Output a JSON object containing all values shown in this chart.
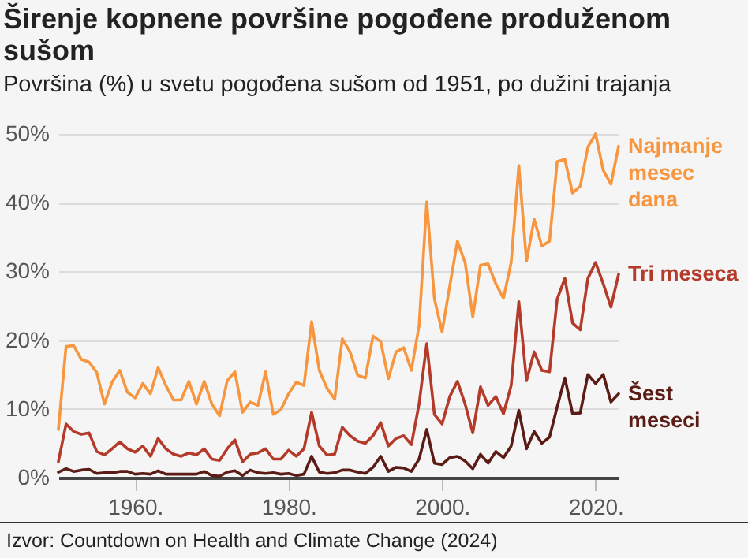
{
  "chart_data": {
    "type": "line",
    "title": "Širenje kopnene površine pogođene produženom sušom",
    "subtitle": "Površina (%) u svetu pogođena sušom od 1951, po dužini trajanja",
    "x": [
      1950,
      1951,
      1952,
      1953,
      1954,
      1955,
      1956,
      1957,
      1958,
      1959,
      1960,
      1961,
      1962,
      1963,
      1964,
      1965,
      1966,
      1967,
      1968,
      1969,
      1970,
      1971,
      1972,
      1973,
      1974,
      1975,
      1976,
      1977,
      1978,
      1979,
      1980,
      1981,
      1982,
      1983,
      1984,
      1985,
      1986,
      1987,
      1988,
      1989,
      1990,
      1991,
      1992,
      1993,
      1994,
      1995,
      1996,
      1997,
      1998,
      1999,
      2000,
      2001,
      2002,
      2003,
      2004,
      2005,
      2006,
      2007,
      2008,
      2009,
      2010,
      2011,
      2012,
      2013,
      2014,
      2015,
      2016,
      2017,
      2018,
      2019,
      2020,
      2021,
      2022,
      2023
    ],
    "series": [
      {
        "name": "Najmanje mesec dana",
        "color": "#f7963e",
        "values": [
          7.0,
          19.1,
          19.2,
          17.2,
          16.8,
          15.3,
          10.7,
          13.9,
          15.6,
          12.4,
          11.6,
          13.7,
          12.2,
          16.0,
          13.4,
          11.3,
          11.3,
          14.0,
          10.7,
          14.0,
          10.7,
          9.0,
          14.1,
          15.4,
          9.5,
          11.0,
          10.5,
          15.4,
          9.2,
          9.9,
          12.2,
          13.9,
          13.4,
          22.7,
          15.6,
          13.0,
          11.4,
          20.2,
          18.3,
          14.9,
          14.5,
          20.6,
          19.8,
          14.4,
          18.3,
          18.9,
          15.6,
          22.1,
          40.1,
          26.0,
          21.2,
          27.9,
          34.4,
          31.3,
          23.4,
          30.9,
          31.1,
          28.2,
          26.1,
          31.3,
          45.4,
          31.5,
          37.6,
          33.7,
          34.4,
          46.0,
          46.3,
          41.4,
          42.4,
          48.1,
          50.0,
          44.7,
          42.7,
          48.2
        ]
      },
      {
        "name": "Tri meseca",
        "color": "#b43a2a",
        "values": [
          2.3,
          7.8,
          6.7,
          6.3,
          6.5,
          3.8,
          3.3,
          4.2,
          5.2,
          4.2,
          3.7,
          4.6,
          3.1,
          5.7,
          4.2,
          3.4,
          3.1,
          3.6,
          3.3,
          4.2,
          2.7,
          2.5,
          4.2,
          5.5,
          2.3,
          3.4,
          3.6,
          4.2,
          2.7,
          2.7,
          4.0,
          3.1,
          4.2,
          9.5,
          4.6,
          3.3,
          3.4,
          7.3,
          6.1,
          5.3,
          5.0,
          6.1,
          8.0,
          4.6,
          5.7,
          6.1,
          4.8,
          10.7,
          19.5,
          9.2,
          7.8,
          11.8,
          14.0,
          10.7,
          6.5,
          13.2,
          10.5,
          11.8,
          9.3,
          13.4,
          25.6,
          14.1,
          18.3,
          15.6,
          15.4,
          26.0,
          29.0,
          22.5,
          21.5,
          29.0,
          31.3,
          28.2,
          24.8,
          29.6
        ]
      },
      {
        "name": "Šest meseci",
        "color": "#5b1c16",
        "values": [
          0.8,
          1.3,
          0.9,
          1.1,
          1.2,
          0.6,
          0.7,
          0.7,
          0.9,
          0.9,
          0.5,
          0.6,
          0.5,
          1.0,
          0.5,
          0.5,
          0.5,
          0.5,
          0.5,
          0.9,
          0.3,
          0.2,
          0.8,
          1.0,
          0.3,
          1.1,
          0.7,
          0.6,
          0.7,
          0.5,
          0.6,
          0.3,
          0.5,
          3.1,
          0.8,
          0.6,
          0.7,
          1.1,
          1.1,
          0.8,
          0.6,
          1.5,
          3.1,
          0.9,
          1.5,
          1.4,
          0.9,
          2.7,
          7.0,
          2.1,
          1.9,
          2.9,
          3.1,
          2.4,
          1.3,
          3.4,
          2.1,
          3.8,
          2.9,
          4.6,
          9.8,
          4.2,
          6.7,
          5.0,
          5.9,
          10.3,
          14.5,
          9.3,
          9.4,
          15.0,
          13.7,
          15.0,
          11.0,
          12.2
        ]
      }
    ],
    "xlim": [
      1950,
      2023
    ],
    "xticks": [
      {
        "value": 1960,
        "label": "1960."
      },
      {
        "value": 1980,
        "label": "1980."
      },
      {
        "value": 2000,
        "label": "2000."
      },
      {
        "value": 2020,
        "label": "2020."
      }
    ],
    "ylim": [
      0,
      50
    ],
    "yticks": [
      {
        "value": 0,
        "label": "0%"
      },
      {
        "value": 10,
        "label": "10%"
      },
      {
        "value": 20,
        "label": "20%"
      },
      {
        "value": 30,
        "label": "30%"
      },
      {
        "value": 40,
        "label": "40%"
      },
      {
        "value": 50,
        "label": "50%"
      }
    ],
    "grid": "y",
    "line_style": "solid",
    "marker": "none",
    "annotations": [
      "Izvor: Countdown on Health and Climate Change (2024)"
    ]
  }
}
